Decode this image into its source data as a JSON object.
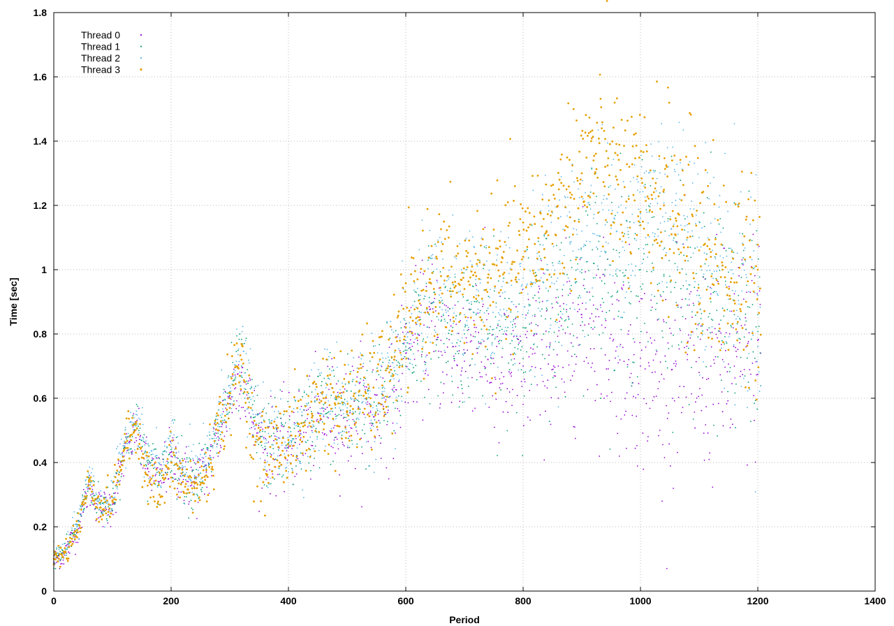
{
  "chart_data": {
    "type": "scatter",
    "title": "",
    "xlabel": "Period",
    "ylabel": "Time [sec]",
    "xlim": [
      0,
      1400
    ],
    "ylim": [
      0,
      1.8
    ],
    "x_ticks": [
      "0",
      "200",
      "400",
      "600",
      "800",
      "1000",
      "1200",
      "1400"
    ],
    "y_ticks": [
      "0",
      "0.2",
      "0.4",
      "0.6",
      "0.8",
      "1",
      "1.2",
      "1.4",
      "1.6",
      "1.8"
    ],
    "grid": true,
    "legend_position": "top-left",
    "series": [
      {
        "name": "Thread 0",
        "color": "#9400d3",
        "points": [
          [
            0,
            0.09
          ],
          [
            20,
            0.12
          ],
          [
            40,
            0.19
          ],
          [
            60,
            0.32
          ],
          [
            80,
            0.25
          ],
          [
            100,
            0.27
          ],
          [
            120,
            0.42
          ],
          [
            140,
            0.5
          ],
          [
            160,
            0.38
          ],
          [
            180,
            0.34
          ],
          [
            200,
            0.42
          ],
          [
            220,
            0.36
          ],
          [
            240,
            0.34
          ],
          [
            260,
            0.37
          ],
          [
            280,
            0.48
          ],
          [
            300,
            0.6
          ],
          [
            320,
            0.68
          ],
          [
            340,
            0.52
          ],
          [
            360,
            0.44
          ],
          [
            380,
            0.46
          ],
          [
            400,
            0.45
          ],
          [
            420,
            0.49
          ],
          [
            440,
            0.51
          ],
          [
            460,
            0.56
          ],
          [
            480,
            0.55
          ],
          [
            500,
            0.53
          ],
          [
            520,
            0.57
          ],
          [
            540,
            0.56
          ],
          [
            560,
            0.58
          ],
          [
            580,
            0.62
          ],
          [
            600,
            0.74
          ],
          [
            620,
            0.78
          ],
          [
            640,
            0.82
          ],
          [
            660,
            0.78
          ],
          [
            680,
            0.76
          ],
          [
            700,
            0.74
          ],
          [
            720,
            0.82
          ],
          [
            740,
            0.72
          ],
          [
            760,
            0.66
          ],
          [
            780,
            0.68
          ],
          [
            800,
            0.7
          ],
          [
            820,
            0.74
          ],
          [
            840,
            0.76
          ],
          [
            860,
            0.7
          ],
          [
            880,
            0.8
          ],
          [
            900,
            0.86
          ],
          [
            920,
            0.84
          ],
          [
            940,
            0.82
          ],
          [
            960,
            0.76
          ],
          [
            980,
            0.72
          ],
          [
            1000,
            0.7
          ],
          [
            1020,
            0.68
          ],
          [
            1040,
            0.66
          ],
          [
            1060,
            0.7
          ],
          [
            1080,
            0.72
          ],
          [
            1100,
            0.68
          ],
          [
            1120,
            0.7
          ],
          [
            1140,
            0.72
          ],
          [
            1160,
            0.7
          ],
          [
            1180,
            0.76
          ],
          [
            1200,
            0.78
          ]
        ]
      },
      {
        "name": "Thread 1",
        "color": "#009e73",
        "points": [
          [
            0,
            0.1
          ],
          [
            20,
            0.13
          ],
          [
            40,
            0.2
          ],
          [
            60,
            0.34
          ],
          [
            80,
            0.26
          ],
          [
            100,
            0.28
          ],
          [
            120,
            0.44
          ],
          [
            140,
            0.52
          ],
          [
            160,
            0.4
          ],
          [
            180,
            0.36
          ],
          [
            200,
            0.44
          ],
          [
            220,
            0.37
          ],
          [
            240,
            0.35
          ],
          [
            260,
            0.38
          ],
          [
            280,
            0.5
          ],
          [
            300,
            0.62
          ],
          [
            320,
            0.7
          ],
          [
            340,
            0.54
          ],
          [
            360,
            0.45
          ],
          [
            380,
            0.47
          ],
          [
            400,
            0.46
          ],
          [
            420,
            0.5
          ],
          [
            440,
            0.53
          ],
          [
            460,
            0.58
          ],
          [
            480,
            0.57
          ],
          [
            500,
            0.55
          ],
          [
            520,
            0.59
          ],
          [
            540,
            0.58
          ],
          [
            560,
            0.6
          ],
          [
            580,
            0.64
          ],
          [
            600,
            0.76
          ],
          [
            620,
            0.8
          ],
          [
            640,
            0.86
          ],
          [
            660,
            0.84
          ],
          [
            680,
            0.82
          ],
          [
            700,
            0.8
          ],
          [
            720,
            0.86
          ],
          [
            740,
            0.8
          ],
          [
            760,
            0.78
          ],
          [
            780,
            0.8
          ],
          [
            800,
            0.82
          ],
          [
            820,
            0.86
          ],
          [
            840,
            0.88
          ],
          [
            860,
            0.86
          ],
          [
            880,
            0.94
          ],
          [
            900,
            1.0
          ],
          [
            920,
            1.02
          ],
          [
            940,
            1.0
          ],
          [
            960,
            0.98
          ],
          [
            980,
            0.96
          ],
          [
            1000,
            1.0
          ],
          [
            1020,
            1.02
          ],
          [
            1040,
            0.98
          ],
          [
            1060,
            0.96
          ],
          [
            1080,
            0.94
          ],
          [
            1100,
            0.92
          ],
          [
            1120,
            0.9
          ],
          [
            1140,
            0.88
          ],
          [
            1160,
            0.86
          ],
          [
            1180,
            0.84
          ],
          [
            1200,
            0.86
          ]
        ]
      },
      {
        "name": "Thread 2",
        "color": "#56b4e9",
        "points": [
          [
            0,
            0.1
          ],
          [
            20,
            0.13
          ],
          [
            40,
            0.2
          ],
          [
            60,
            0.36
          ],
          [
            80,
            0.27
          ],
          [
            100,
            0.29
          ],
          [
            120,
            0.46
          ],
          [
            140,
            0.55
          ],
          [
            160,
            0.42
          ],
          [
            180,
            0.37
          ],
          [
            200,
            0.46
          ],
          [
            220,
            0.38
          ],
          [
            240,
            0.36
          ],
          [
            260,
            0.39
          ],
          [
            280,
            0.52
          ],
          [
            300,
            0.64
          ],
          [
            320,
            0.72
          ],
          [
            340,
            0.55
          ],
          [
            360,
            0.46
          ],
          [
            380,
            0.48
          ],
          [
            400,
            0.47
          ],
          [
            420,
            0.51
          ],
          [
            440,
            0.55
          ],
          [
            460,
            0.6
          ],
          [
            480,
            0.6
          ],
          [
            500,
            0.57
          ],
          [
            520,
            0.61
          ],
          [
            540,
            0.6
          ],
          [
            560,
            0.62
          ],
          [
            580,
            0.66
          ],
          [
            600,
            0.78
          ],
          [
            620,
            0.84
          ],
          [
            640,
            0.9
          ],
          [
            660,
            0.9
          ],
          [
            680,
            0.88
          ],
          [
            700,
            0.86
          ],
          [
            720,
            0.92
          ],
          [
            740,
            0.88
          ],
          [
            760,
            0.86
          ],
          [
            780,
            0.9
          ],
          [
            800,
            0.94
          ],
          [
            820,
            0.98
          ],
          [
            840,
            1.0
          ],
          [
            860,
            1.02
          ],
          [
            880,
            1.08
          ],
          [
            900,
            1.12
          ],
          [
            920,
            1.16
          ],
          [
            940,
            1.14
          ],
          [
            960,
            1.12
          ],
          [
            980,
            1.1
          ],
          [
            1000,
            1.16
          ],
          [
            1020,
            1.22
          ],
          [
            1040,
            1.24
          ],
          [
            1060,
            1.2
          ],
          [
            1080,
            1.14
          ],
          [
            1100,
            1.1
          ],
          [
            1120,
            1.04
          ],
          [
            1140,
            1.0
          ],
          [
            1160,
            0.96
          ],
          [
            1180,
            0.9
          ],
          [
            1200,
            0.92
          ]
        ]
      },
      {
        "name": "Thread 3",
        "color": "#e69f00",
        "points": [
          [
            0,
            0.1
          ],
          [
            20,
            0.12
          ],
          [
            40,
            0.19
          ],
          [
            60,
            0.34
          ],
          [
            80,
            0.26
          ],
          [
            100,
            0.28
          ],
          [
            120,
            0.44
          ],
          [
            140,
            0.52
          ],
          [
            160,
            0.36
          ],
          [
            180,
            0.3
          ],
          [
            200,
            0.4
          ],
          [
            220,
            0.34
          ],
          [
            240,
            0.32
          ],
          [
            260,
            0.36
          ],
          [
            280,
            0.5
          ],
          [
            300,
            0.6
          ],
          [
            320,
            0.72
          ],
          [
            340,
            0.48
          ],
          [
            360,
            0.4
          ],
          [
            380,
            0.46
          ],
          [
            400,
            0.47
          ],
          [
            420,
            0.5
          ],
          [
            440,
            0.54
          ],
          [
            460,
            0.6
          ],
          [
            480,
            0.58
          ],
          [
            500,
            0.56
          ],
          [
            520,
            0.62
          ],
          [
            540,
            0.6
          ],
          [
            560,
            0.64
          ],
          [
            580,
            0.72
          ],
          [
            600,
            0.82
          ],
          [
            620,
            0.88
          ],
          [
            640,
            0.96
          ],
          [
            660,
            0.98
          ],
          [
            680,
            0.96
          ],
          [
            700,
            0.94
          ],
          [
            720,
            0.98
          ],
          [
            740,
            0.96
          ],
          [
            760,
            0.98
          ],
          [
            780,
            1.0
          ],
          [
            800,
            1.04
          ],
          [
            820,
            1.08
          ],
          [
            840,
            1.12
          ],
          [
            860,
            1.16
          ],
          [
            880,
            1.24
          ],
          [
            900,
            1.3
          ],
          [
            920,
            1.34
          ],
          [
            940,
            1.32
          ],
          [
            960,
            1.28
          ],
          [
            980,
            1.22
          ],
          [
            1000,
            1.18
          ],
          [
            1020,
            1.22
          ],
          [
            1040,
            1.2
          ],
          [
            1060,
            1.16
          ],
          [
            1080,
            1.1
          ],
          [
            1100,
            1.06
          ],
          [
            1120,
            1.04
          ],
          [
            1140,
            1.0
          ],
          [
            1160,
            0.96
          ],
          [
            1180,
            0.9
          ],
          [
            1200,
            1.0
          ]
        ]
      }
    ]
  }
}
